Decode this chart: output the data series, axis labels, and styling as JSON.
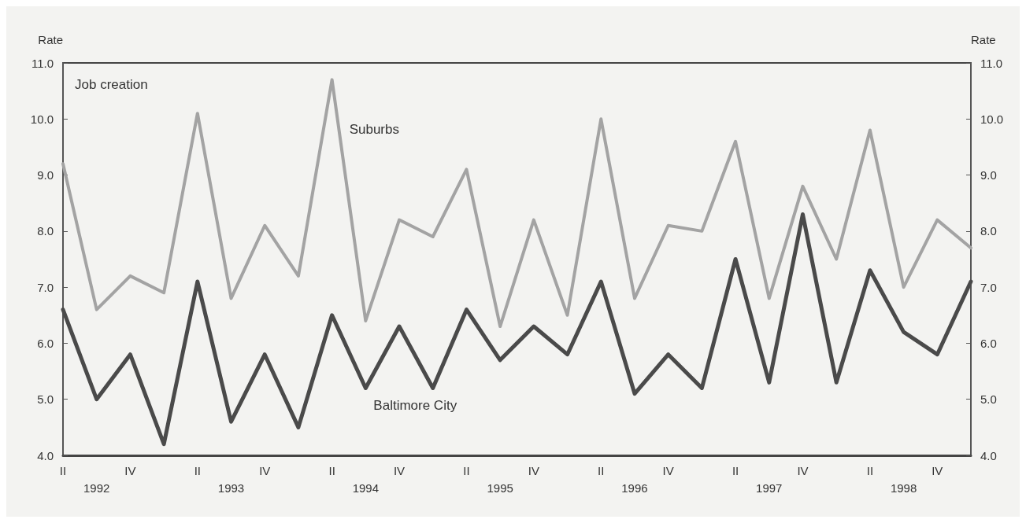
{
  "chart_data": {
    "type": "line",
    "title": "Job creation",
    "ylabel": "Rate",
    "y2label": "Rate",
    "categories": [
      "II",
      "1992",
      "IV",
      null,
      "II",
      "1993",
      "IV",
      null,
      "II",
      "1994",
      "IV",
      null,
      "II",
      "1995",
      "IV",
      null,
      "II",
      "1996",
      "IV",
      null,
      "II",
      "1997",
      "IV",
      null,
      "II",
      "1998",
      "IV",
      null
    ],
    "series": [
      {
        "name": "Suburbs",
        "color": "#a3a3a3",
        "values": [
          9.2,
          6.6,
          7.2,
          6.9,
          10.1,
          6.8,
          8.1,
          7.2,
          10.7,
          6.4,
          8.2,
          7.9,
          9.1,
          6.3,
          8.2,
          6.5,
          10.0,
          6.8,
          8.1,
          8.0,
          9.6,
          6.8,
          8.8,
          7.5,
          9.8,
          7.0,
          8.2,
          7.7
        ]
      },
      {
        "name": "Baltimore City",
        "color": "#4a4a4a",
        "values": [
          6.6,
          5.0,
          5.8,
          4.2,
          7.1,
          4.6,
          5.8,
          4.5,
          6.5,
          5.2,
          6.3,
          5.2,
          6.6,
          5.7,
          6.3,
          5.8,
          7.1,
          5.1,
          5.8,
          5.2,
          7.5,
          5.3,
          8.3,
          5.3,
          7.3,
          6.2,
          5.8,
          7.1
        ]
      }
    ],
    "ylim": [
      4,
      11
    ],
    "yticks": [
      {
        "value": 4,
        "label": "4.0"
      },
      {
        "value": 5,
        "label": "5.0"
      },
      {
        "value": 6,
        "label": "6.0"
      },
      {
        "value": 7,
        "label": "7.0"
      },
      {
        "value": 8,
        "label": "8.0"
      },
      {
        "value": 9,
        "label": "9.0"
      },
      {
        "value": 10,
        "label": "10.0"
      },
      {
        "value": 11,
        "label": "11.0"
      }
    ],
    "y2lim": [
      4,
      11
    ],
    "y2ticks": [
      {
        "value": 4,
        "label": "4.0"
      },
      {
        "value": 5,
        "label": "5.0"
      },
      {
        "value": 6,
        "label": "6.0"
      },
      {
        "value": 7,
        "label": "7.0"
      },
      {
        "value": 8,
        "label": "8.0"
      },
      {
        "value": 9,
        "label": "9.0"
      },
      {
        "value": 10,
        "label": "10.0"
      },
      {
        "value": 11,
        "label": "11.0"
      }
    ],
    "grid": false,
    "legend": false,
    "marker": "none",
    "line_style": "solid"
  }
}
